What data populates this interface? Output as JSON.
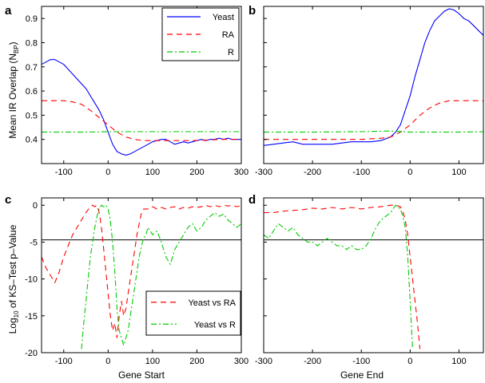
{
  "figure": {
    "colors": {
      "yeast": "#0000ff",
      "ra": "#ff0000",
      "r": "#00cc00",
      "ref": "#000000"
    }
  },
  "chart_data": [
    {
      "panel": "a",
      "type": "line",
      "xlim": [
        -150,
        300
      ],
      "ylim": [
        0.3,
        0.95
      ],
      "xticks": [
        "-100",
        "0",
        "100",
        "200",
        "300"
      ],
      "xtick_values": [
        -100,
        0,
        100,
        200,
        300
      ],
      "yticks": [
        "0.4",
        "0.5",
        "0.6",
        "0.7",
        "0.8",
        "0.9"
      ],
      "ytick_values": [
        0.4,
        0.5,
        0.6,
        0.7,
        0.8,
        0.9
      ],
      "ylabel_main": "Mean IR Overlap (N",
      "ylabel_sub": "BP",
      "ylabel_end": ")",
      "xlabel": "",
      "legend": [
        "Yeast",
        "RA",
        "R"
      ],
      "series": [
        {
          "name": "Yeast",
          "color": "#0000ff",
          "dash": "",
          "x": [
            -150,
            -140,
            -130,
            -120,
            -110,
            -100,
            -90,
            -80,
            -70,
            -60,
            -50,
            -40,
            -30,
            -20,
            -10,
            0,
            10,
            20,
            30,
            40,
            50,
            60,
            70,
            80,
            90,
            100,
            110,
            120,
            130,
            140,
            150,
            160,
            170,
            180,
            190,
            200,
            210,
            220,
            230,
            240,
            250,
            260,
            270,
            280,
            290,
            300
          ],
          "y": [
            0.71,
            0.72,
            0.73,
            0.73,
            0.72,
            0.71,
            0.69,
            0.67,
            0.65,
            0.63,
            0.61,
            0.58,
            0.55,
            0.52,
            0.48,
            0.43,
            0.38,
            0.35,
            0.34,
            0.335,
            0.34,
            0.35,
            0.36,
            0.37,
            0.38,
            0.39,
            0.395,
            0.4,
            0.4,
            0.39,
            0.38,
            0.385,
            0.39,
            0.385,
            0.39,
            0.395,
            0.4,
            0.395,
            0.4,
            0.4,
            0.405,
            0.4,
            0.405,
            0.4,
            0.4,
            0.4
          ]
        },
        {
          "name": "RA",
          "color": "#ff0000",
          "dash": "7,5",
          "x": [
            -150,
            -120,
            -100,
            -80,
            -60,
            -40,
            -20,
            0,
            20,
            40,
            60,
            80,
            100,
            150,
            200,
            250,
            300
          ],
          "y": [
            0.56,
            0.56,
            0.56,
            0.555,
            0.545,
            0.52,
            0.49,
            0.46,
            0.43,
            0.41,
            0.4,
            0.395,
            0.395,
            0.395,
            0.395,
            0.4,
            0.4
          ]
        },
        {
          "name": "R",
          "color": "#00cc00",
          "dash": "7,3,2,3",
          "x": [
            -150,
            -100,
            -50,
            0,
            50,
            100,
            150,
            200,
            250,
            300
          ],
          "y": [
            0.43,
            0.43,
            0.43,
            0.432,
            0.432,
            0.432,
            0.432,
            0.432,
            0.432,
            0.432
          ]
        }
      ]
    },
    {
      "panel": "b",
      "type": "line",
      "xlim": [
        -300,
        150
      ],
      "ylim": [
        0.3,
        0.95
      ],
      "xticks": [
        "-300",
        "-200",
        "-100",
        "0",
        "100"
      ],
      "xtick_values": [
        -300,
        -200,
        -100,
        0,
        100
      ],
      "yticks": [],
      "ytick_values": [],
      "xlabel": "",
      "series": [
        {
          "name": "Yeast",
          "color": "#0000ff",
          "dash": "",
          "x": [
            -300,
            -280,
            -260,
            -240,
            -220,
            -200,
            -180,
            -160,
            -140,
            -120,
            -100,
            -80,
            -60,
            -40,
            -30,
            -20,
            -10,
            0,
            10,
            20,
            30,
            40,
            50,
            60,
            70,
            80,
            90,
            100,
            110,
            120,
            130,
            140,
            150
          ],
          "y": [
            0.375,
            0.38,
            0.385,
            0.39,
            0.38,
            0.38,
            0.38,
            0.38,
            0.385,
            0.39,
            0.39,
            0.39,
            0.395,
            0.41,
            0.43,
            0.46,
            0.52,
            0.58,
            0.66,
            0.73,
            0.8,
            0.85,
            0.89,
            0.91,
            0.93,
            0.94,
            0.935,
            0.92,
            0.9,
            0.89,
            0.87,
            0.85,
            0.83
          ]
        },
        {
          "name": "RA",
          "color": "#ff0000",
          "dash": "7,5",
          "x": [
            -300,
            -250,
            -200,
            -150,
            -100,
            -60,
            -40,
            -20,
            0,
            20,
            40,
            60,
            80,
            100,
            120,
            150
          ],
          "y": [
            0.4,
            0.4,
            0.4,
            0.4,
            0.4,
            0.405,
            0.41,
            0.43,
            0.46,
            0.5,
            0.53,
            0.55,
            0.56,
            0.56,
            0.56,
            0.56
          ]
        },
        {
          "name": "R",
          "color": "#00cc00",
          "dash": "7,3,2,3",
          "x": [
            -300,
            -200,
            -100,
            -40,
            0,
            50,
            100,
            150
          ],
          "y": [
            0.43,
            0.43,
            0.432,
            0.435,
            0.43,
            0.43,
            0.43,
            0.432
          ]
        }
      ]
    },
    {
      "panel": "c",
      "type": "line",
      "xlim": [
        -150,
        300
      ],
      "ylim": [
        -20,
        1
      ],
      "xticks": [
        "-100",
        "0",
        "100",
        "200",
        "300"
      ],
      "xtick_values": [
        -100,
        0,
        100,
        200,
        300
      ],
      "yticks": [
        "0",
        "-5",
        "-10",
        "-15",
        "-20"
      ],
      "ytick_values": [
        0,
        -5,
        -10,
        -15,
        -20
      ],
      "ylabel_pre": "Log",
      "ylabel_sub": "10",
      "ylabel_post": " of KS–Test p–Value",
      "xlabel": "Gene Start",
      "reference_line": -4.7,
      "legend": [
        "Yeast vs RA",
        "Yeast vs R"
      ],
      "series": [
        {
          "name": "Yeast vs RA",
          "color": "#ff0000",
          "dash": "7,5",
          "x": [
            -150,
            -140,
            -130,
            -120,
            -110,
            -100,
            -90,
            -80,
            -70,
            -60,
            -50,
            -40,
            -35,
            -30,
            -25,
            -20,
            -15,
            -10,
            -5,
            0,
            5,
            10,
            15,
            20,
            25,
            30,
            35,
            40,
            45,
            50,
            55,
            60,
            65,
            70,
            75,
            80,
            90,
            100,
            110,
            120,
            130,
            140,
            150,
            160,
            170,
            180,
            190,
            200,
            210,
            220,
            230,
            240,
            250,
            260,
            270,
            280,
            290,
            300
          ],
          "y": [
            -7,
            -8.5,
            -9.5,
            -10.5,
            -9,
            -7,
            -5.5,
            -4,
            -3,
            -2,
            -1,
            -0.2,
            0,
            -0.2,
            0,
            -1,
            -3,
            -6,
            -9,
            -12,
            -15,
            -17,
            -16,
            -18,
            -15,
            -13,
            -15,
            -14,
            -12,
            -10,
            -8,
            -6,
            -4,
            -2.5,
            -1,
            -0.5,
            -0.5,
            -0.2,
            -0.5,
            -0.3,
            -0.5,
            -0.3,
            -0.2,
            -0.5,
            -0.3,
            -0.4,
            -0.2,
            -0.3,
            -0.2,
            0,
            -0.2,
            0,
            -0.2,
            0,
            -0.1,
            0,
            -0.2,
            0
          ]
        },
        {
          "name": "Yeast vs R",
          "color": "#00cc00",
          "dash": "7,3,2,3",
          "x": [
            -60,
            -55,
            -50,
            -45,
            -40,
            -35,
            -30,
            -25,
            -20,
            -15,
            -10,
            -5,
            0,
            5,
            10,
            15,
            20,
            25,
            30,
            35,
            40,
            45,
            50,
            55,
            60,
            65,
            70,
            75,
            80,
            85,
            90,
            100,
            110,
            120,
            130,
            140,
            150,
            160,
            170,
            180,
            190,
            200,
            210,
            220,
            230,
            240,
            250,
            260,
            270,
            280,
            290,
            300
          ],
          "y": [
            -19.5,
            -16,
            -13,
            -10,
            -7,
            -5,
            -3,
            -1.5,
            -0.5,
            0,
            -0.2,
            0,
            -0.5,
            -2,
            -5,
            -9,
            -14,
            -17,
            -18,
            -19,
            -18,
            -17,
            -15,
            -13,
            -11,
            -9,
            -7,
            -5.5,
            -4.5,
            -4,
            -3,
            -4,
            -3.5,
            -5,
            -7,
            -8,
            -6,
            -5,
            -4,
            -3,
            -2.5,
            -3.5,
            -3,
            -2,
            -1.5,
            -1,
            -1.5,
            -1.2,
            -2,
            -2.5,
            -3,
            -2.5
          ]
        }
      ]
    },
    {
      "panel": "d",
      "type": "line",
      "xlim": [
        -300,
        150
      ],
      "ylim": [
        -20,
        1
      ],
      "xticks": [
        "-300",
        "-200",
        "-100",
        "0",
        "100"
      ],
      "xtick_values": [
        -300,
        -200,
        -100,
        0,
        100
      ],
      "yticks": [],
      "ytick_values": [],
      "xlabel": "Gene End",
      "reference_line": -4.7,
      "series": [
        {
          "name": "Yeast vs RA",
          "color": "#ff0000",
          "dash": "7,5",
          "x": [
            -300,
            -280,
            -260,
            -240,
            -220,
            -200,
            -180,
            -160,
            -140,
            -120,
            -100,
            -80,
            -60,
            -40,
            -30,
            -20,
            -15,
            -10,
            -5,
            0,
            5,
            10,
            15,
            20
          ],
          "y": [
            -1,
            -1,
            -0.8,
            -0.7,
            -0.6,
            -0.4,
            -0.5,
            -0.3,
            -0.5,
            -0.3,
            -0.5,
            -0.3,
            -0.2,
            0,
            0,
            -0.2,
            -0.8,
            -2,
            -4,
            -7,
            -10,
            -13,
            -16,
            -19.5
          ]
        },
        {
          "name": "Yeast vs R",
          "color": "#00cc00",
          "dash": "7,3,2,3",
          "x": [
            -300,
            -290,
            -280,
            -270,
            -260,
            -250,
            -240,
            -230,
            -220,
            -210,
            -200,
            -190,
            -180,
            -170,
            -160,
            -150,
            -140,
            -130,
            -120,
            -110,
            -100,
            -90,
            -80,
            -70,
            -60,
            -50,
            -40,
            -30,
            -20,
            -15,
            -10,
            -5,
            0,
            5
          ],
          "y": [
            -4,
            -4.5,
            -3.5,
            -2.5,
            -3,
            -3.5,
            -3,
            -4,
            -4.5,
            -5,
            -5,
            -5.5,
            -5,
            -4.5,
            -5,
            -5.5,
            -5.5,
            -6,
            -5.5,
            -6,
            -6,
            -5.5,
            -4.5,
            -3,
            -2,
            -1.5,
            -1,
            0,
            -0.5,
            -1.5,
            -3,
            -7,
            -13,
            -19.5
          ]
        }
      ]
    }
  ]
}
